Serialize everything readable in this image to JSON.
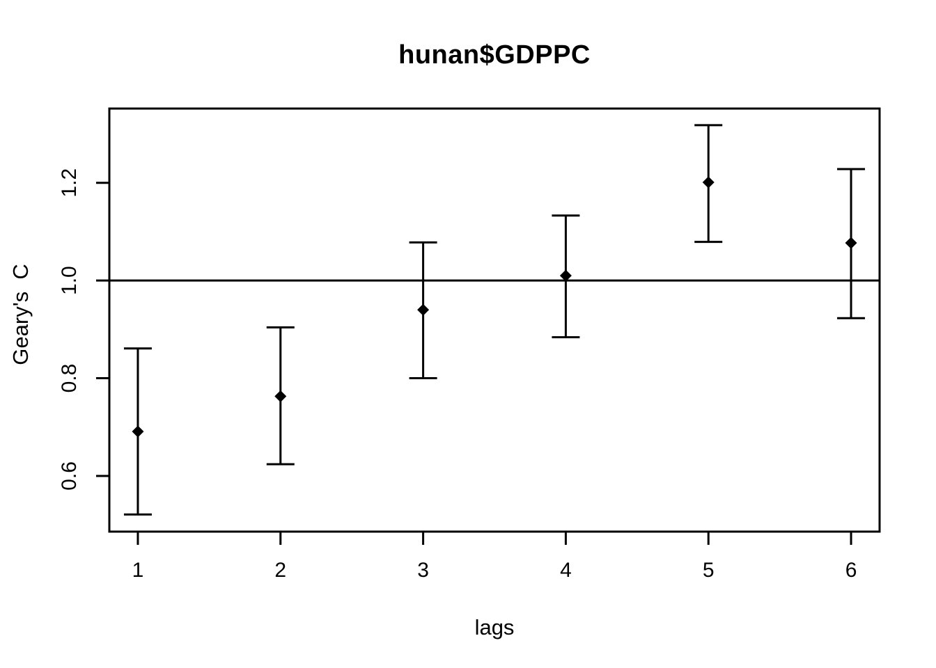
{
  "figure": {
    "title": "hunan$GDPPC",
    "xlabel": "lags",
    "ylabel": "Geary's  C"
  },
  "chart_data": {
    "type": "scatter",
    "subtype": "spatial-correlogram-error-bars",
    "title": "hunan$GDPPC",
    "xlabel": "lags",
    "ylabel": "Geary's  C",
    "x": [
      1,
      2,
      3,
      4,
      5,
      6
    ],
    "series": [
      {
        "name": "Geary's C estimate",
        "values": [
          0.691,
          0.763,
          0.94,
          1.01,
          1.201,
          1.077
        ]
      },
      {
        "name": "lower error bound",
        "values": [
          0.521,
          0.624,
          0.8,
          0.884,
          1.079,
          0.923
        ]
      },
      {
        "name": "upper error bound",
        "values": [
          0.861,
          0.904,
          1.078,
          1.133,
          1.318,
          1.228
        ]
      }
    ],
    "reference_line_y": 1.0,
    "xticks": [
      {
        "value": 1,
        "label": "1"
      },
      {
        "value": 2,
        "label": "2"
      },
      {
        "value": 3,
        "label": "3"
      },
      {
        "value": 4,
        "label": "4"
      },
      {
        "value": 5,
        "label": "5"
      },
      {
        "value": 6,
        "label": "6"
      }
    ],
    "yticks": [
      {
        "value": 0.6,
        "label": "0.6"
      },
      {
        "value": 0.8,
        "label": "0.8"
      },
      {
        "value": 1.0,
        "label": "1.0"
      },
      {
        "value": 1.2,
        "label": "1.2"
      }
    ],
    "xlim": [
      0.8,
      6.2
    ],
    "ylim": [
      0.486,
      1.352
    ],
    "grid": false,
    "legend": false,
    "marker": "filled-diamond",
    "colors": {
      "foreground": "#000000",
      "background": "#FFFFFF"
    }
  }
}
